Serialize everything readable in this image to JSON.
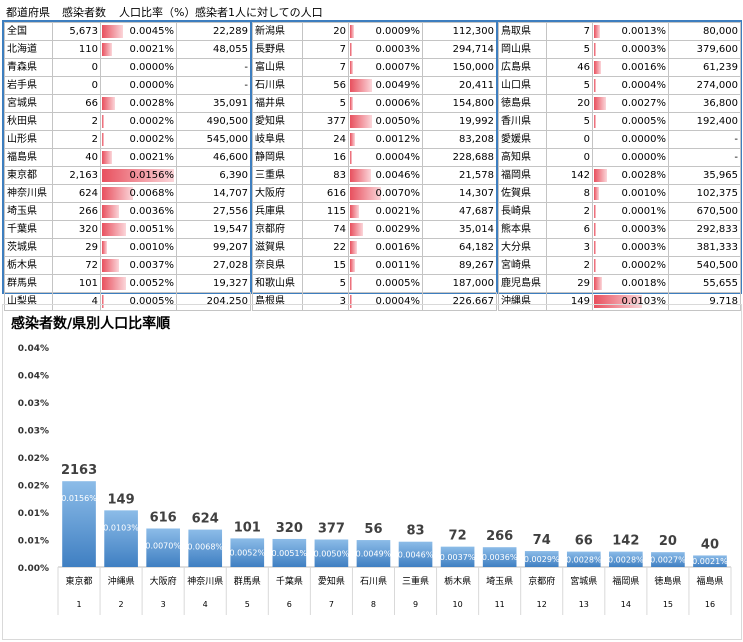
{
  "header": {
    "col_pref": "都道府県",
    "col_cases": "感染者数",
    "col_ratio": "人口比率（%）",
    "col_per": "感染者1人に対しての人口"
  },
  "table_blocks": [
    [
      {
        "pref": "全国",
        "cases": "5,673",
        "ratio": 0.0045,
        "ratio_label": "0.0045%",
        "per": "22,289"
      },
      {
        "pref": "北海道",
        "cases": "110",
        "ratio": 0.0021,
        "ratio_label": "0.0021%",
        "per": "48,055"
      },
      {
        "pref": "青森県",
        "cases": "0",
        "ratio": 0,
        "ratio_label": "0.0000%",
        "per": "-"
      },
      {
        "pref": "岩手県",
        "cases": "0",
        "ratio": 0,
        "ratio_label": "0.0000%",
        "per": "-"
      },
      {
        "pref": "宮城県",
        "cases": "66",
        "ratio": 0.0028,
        "ratio_label": "0.0028%",
        "per": "35,091"
      },
      {
        "pref": "秋田県",
        "cases": "2",
        "ratio": 0.0002,
        "ratio_label": "0.0002%",
        "per": "490,500"
      },
      {
        "pref": "山形県",
        "cases": "2",
        "ratio": 0.0002,
        "ratio_label": "0.0002%",
        "per": "545,000"
      },
      {
        "pref": "福島県",
        "cases": "40",
        "ratio": 0.0021,
        "ratio_label": "0.0021%",
        "per": "46,600"
      },
      {
        "pref": "東京都",
        "cases": "2,163",
        "ratio": 0.0156,
        "ratio_label": "0.0156%",
        "per": "6,390"
      },
      {
        "pref": "神奈川県",
        "cases": "624",
        "ratio": 0.0068,
        "ratio_label": "0.0068%",
        "per": "14,707"
      },
      {
        "pref": "埼玉県",
        "cases": "266",
        "ratio": 0.0036,
        "ratio_label": "0.0036%",
        "per": "27,556"
      },
      {
        "pref": "千葉県",
        "cases": "320",
        "ratio": 0.0051,
        "ratio_label": "0.0051%",
        "per": "19,547"
      },
      {
        "pref": "茨城県",
        "cases": "29",
        "ratio": 0.001,
        "ratio_label": "0.0010%",
        "per": "99,207"
      },
      {
        "pref": "栃木県",
        "cases": "72",
        "ratio": 0.0037,
        "ratio_label": "0.0037%",
        "per": "27,028"
      },
      {
        "pref": "群馬県",
        "cases": "101",
        "ratio": 0.0052,
        "ratio_label": "0.0052%",
        "per": "19,327"
      },
      {
        "pref": "山梨県",
        "cases": "4",
        "ratio": 0.0005,
        "ratio_label": "0.0005%",
        "per": "204,250"
      }
    ],
    [
      {
        "pref": "新潟県",
        "cases": "20",
        "ratio": 0.0009,
        "ratio_label": "0.0009%",
        "per": "112,300"
      },
      {
        "pref": "長野県",
        "cases": "7",
        "ratio": 0.0003,
        "ratio_label": "0.0003%",
        "per": "294,714"
      },
      {
        "pref": "富山県",
        "cases": "7",
        "ratio": 0.0007,
        "ratio_label": "0.0007%",
        "per": "150,000"
      },
      {
        "pref": "石川県",
        "cases": "56",
        "ratio": 0.0049,
        "ratio_label": "0.0049%",
        "per": "20,411"
      },
      {
        "pref": "福井県",
        "cases": "5",
        "ratio": 0.0006,
        "ratio_label": "0.0006%",
        "per": "154,800"
      },
      {
        "pref": "愛知県",
        "cases": "377",
        "ratio": 0.005,
        "ratio_label": "0.0050%",
        "per": "19,992"
      },
      {
        "pref": "岐阜県",
        "cases": "24",
        "ratio": 0.0012,
        "ratio_label": "0.0012%",
        "per": "83,208"
      },
      {
        "pref": "静岡県",
        "cases": "16",
        "ratio": 0.0004,
        "ratio_label": "0.0004%",
        "per": "228,688"
      },
      {
        "pref": "三重県",
        "cases": "83",
        "ratio": 0.0046,
        "ratio_label": "0.0046%",
        "per": "21,578"
      },
      {
        "pref": "大阪府",
        "cases": "616",
        "ratio": 0.007,
        "ratio_label": "0.0070%",
        "per": "14,307"
      },
      {
        "pref": "兵庫県",
        "cases": "115",
        "ratio": 0.0021,
        "ratio_label": "0.0021%",
        "per": "47,687"
      },
      {
        "pref": "京都府",
        "cases": "74",
        "ratio": 0.0029,
        "ratio_label": "0.0029%",
        "per": "35,014"
      },
      {
        "pref": "滋賀県",
        "cases": "22",
        "ratio": 0.0016,
        "ratio_label": "0.0016%",
        "per": "64,182"
      },
      {
        "pref": "奈良県",
        "cases": "15",
        "ratio": 0.0011,
        "ratio_label": "0.0011%",
        "per": "89,267"
      },
      {
        "pref": "和歌山県",
        "cases": "5",
        "ratio": 0.0005,
        "ratio_label": "0.0005%",
        "per": "187,000"
      },
      {
        "pref": "島根県",
        "cases": "3",
        "ratio": 0.0004,
        "ratio_label": "0.0004%",
        "per": "226,667"
      }
    ],
    [
      {
        "pref": "鳥取県",
        "cases": "7",
        "ratio": 0.0013,
        "ratio_label": "0.0013%",
        "per": "80,000"
      },
      {
        "pref": "岡山県",
        "cases": "5",
        "ratio": 0.0003,
        "ratio_label": "0.0003%",
        "per": "379,600"
      },
      {
        "pref": "広島県",
        "cases": "46",
        "ratio": 0.0016,
        "ratio_label": "0.0016%",
        "per": "61,239"
      },
      {
        "pref": "山口県",
        "cases": "5",
        "ratio": 0.0004,
        "ratio_label": "0.0004%",
        "per": "274,000"
      },
      {
        "pref": "徳島県",
        "cases": "20",
        "ratio": 0.0027,
        "ratio_label": "0.0027%",
        "per": "36,800"
      },
      {
        "pref": "香川県",
        "cases": "5",
        "ratio": 0.0005,
        "ratio_label": "0.0005%",
        "per": "192,400"
      },
      {
        "pref": "愛媛県",
        "cases": "0",
        "ratio": 0,
        "ratio_label": "0.0000%",
        "per": "-"
      },
      {
        "pref": "高知県",
        "cases": "0",
        "ratio": 0,
        "ratio_label": "0.0000%",
        "per": "-"
      },
      {
        "pref": "福岡県",
        "cases": "142",
        "ratio": 0.0028,
        "ratio_label": "0.0028%",
        "per": "35,965"
      },
      {
        "pref": "佐賀県",
        "cases": "8",
        "ratio": 0.001,
        "ratio_label": "0.0010%",
        "per": "102,375"
      },
      {
        "pref": "長崎県",
        "cases": "2",
        "ratio": 0.0001,
        "ratio_label": "0.0001%",
        "per": "670,500"
      },
      {
        "pref": "熊本県",
        "cases": "6",
        "ratio": 0.0003,
        "ratio_label": "0.0003%",
        "per": "292,833"
      },
      {
        "pref": "大分県",
        "cases": "3",
        "ratio": 0.0003,
        "ratio_label": "0.0003%",
        "per": "381,333"
      },
      {
        "pref": "宮崎県",
        "cases": "2",
        "ratio": 0.0002,
        "ratio_label": "0.0002%",
        "per": "540,500"
      },
      {
        "pref": "鹿児島県",
        "cases": "29",
        "ratio": 0.0018,
        "ratio_label": "0.0018%",
        "per": "55,655"
      },
      {
        "pref": "沖縄県",
        "cases": "149",
        "ratio": 0.0103,
        "ratio_label": "0.0103%",
        "per": "9,718"
      }
    ]
  ],
  "colors": {
    "accent_blue": "#3d7ebf",
    "bar_red": "#e8505e",
    "chart_bar": "#5b9bd5"
  },
  "chart_data": {
    "type": "bar",
    "title": "感染者数/県別人口比率順",
    "categories": [
      "東京都",
      "沖縄県",
      "大阪府",
      "神奈川県",
      "群馬県",
      "千葉県",
      "愛知県",
      "石川県",
      "三重県",
      "栃木県",
      "埼玉県",
      "京都府",
      "宮城県",
      "福岡県",
      "徳島県",
      "福島県"
    ],
    "ranks": [
      "1",
      "2",
      "3",
      "4",
      "5",
      "6",
      "7",
      "8",
      "9",
      "10",
      "11",
      "12",
      "13",
      "14",
      "15",
      "16"
    ],
    "values": [
      0.0156,
      0.0103,
      0.007,
      0.0068,
      0.0052,
      0.0051,
      0.005,
      0.0049,
      0.0046,
      0.0037,
      0.0036,
      0.0029,
      0.0028,
      0.0028,
      0.0027,
      0.0021
    ],
    "value_labels": [
      "0.0156%",
      "0.0103%",
      "0.0070%",
      "0.0068%",
      "0.0052%",
      "0.0051%",
      "0.0050%",
      "0.0049%",
      "0.0046%",
      "0.0037%",
      "0.0036%",
      "0.0029%",
      "0.0028%",
      "0.0028%",
      "0.0027%",
      "0.0021%"
    ],
    "case_labels": [
      "2163",
      "149",
      "616",
      "624",
      "101",
      "320",
      "377",
      "56",
      "83",
      "72",
      "266",
      "74",
      "66",
      "142",
      "20",
      "40"
    ],
    "ytick_labels": [
      "0.00%",
      "0.01%",
      "0.01%",
      "0.02%",
      "0.02%",
      "0.03%",
      "0.03%",
      "0.04%",
      "0.04%"
    ],
    "ylim": [
      0,
      0.04
    ],
    "grid": false
  }
}
